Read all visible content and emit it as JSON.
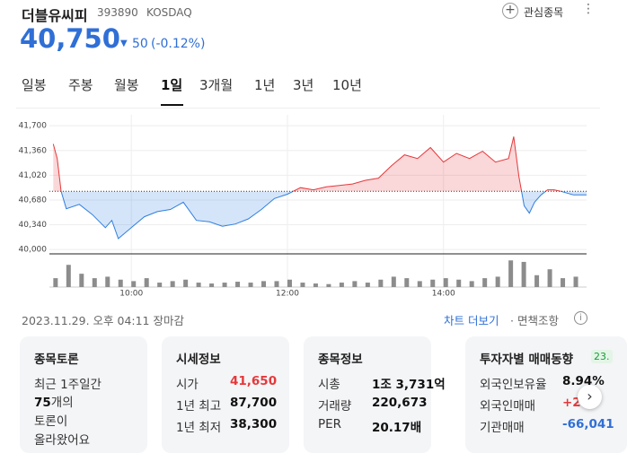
{
  "header": {
    "name": "더블유씨피",
    "code": "393890",
    "market": "KOSDAQ",
    "watch": "관심종목",
    "price": "40,750",
    "change": "50",
    "change_pct": "(-0.12%)"
  },
  "tabs": [
    "일봉",
    "주봉",
    "월봉",
    "1일",
    "3개월",
    "1년",
    "3년",
    "10년"
  ],
  "chart_data": {
    "type": "line",
    "x": [
      540,
      543,
      546,
      550,
      560,
      570,
      580,
      585,
      590,
      600,
      610,
      620,
      630,
      640,
      650,
      660,
      670,
      680,
      690,
      700,
      710,
      720,
      730,
      740,
      750,
      760,
      770,
      780,
      790,
      800,
      810,
      820,
      830,
      840,
      850,
      860,
      870,
      880,
      890,
      894,
      898,
      902,
      906,
      910,
      915,
      920,
      925,
      930,
      940,
      950
    ],
    "series": [
      {
        "values": [
          41450,
          41250,
          40800,
          40560,
          40620,
          40480,
          40300,
          40400,
          40150,
          40300,
          40450,
          40520,
          40550,
          40650,
          40400,
          40380,
          40320,
          40350,
          40420,
          40550,
          40700,
          40760,
          40850,
          40820,
          40860,
          40880,
          40900,
          40950,
          40980,
          41150,
          41300,
          41250,
          41400,
          41200,
          41320,
          41250,
          41350,
          41200,
          41250,
          41550,
          41000,
          40600,
          40500,
          40650,
          40750,
          40820,
          40820,
          40800,
          40750,
          40750
        ],
        "up_color": "#e5383b",
        "down_color": "#2f7fe0"
      }
    ],
    "reference": 40800,
    "xlim": [
      537,
      950
    ],
    "ylim": [
      39940,
      41850
    ],
    "xticks": [
      {
        "value": 600,
        "label": "10:00"
      },
      {
        "value": 720,
        "label": "12:00"
      },
      {
        "value": 840,
        "label": "14:00"
      }
    ],
    "yticks": [
      {
        "value": 41700,
        "label": "41,700"
      },
      {
        "value": 41360,
        "label": "41,360"
      },
      {
        "value": 41020,
        "label": "41,020"
      },
      {
        "value": 40680,
        "label": "40,680"
      },
      {
        "value": 40340,
        "label": "40,340"
      },
      {
        "value": 40000,
        "label": "40,000"
      }
    ],
    "grid": true,
    "volume": {
      "x": [
        540,
        550,
        560,
        570,
        580,
        590,
        600,
        610,
        620,
        630,
        640,
        650,
        660,
        670,
        680,
        690,
        700,
        710,
        720,
        730,
        740,
        750,
        760,
        770,
        780,
        790,
        800,
        810,
        820,
        830,
        840,
        850,
        860,
        870,
        880,
        890,
        900,
        910,
        920,
        930,
        940
      ],
      "values": [
        30,
        75,
        45,
        30,
        35,
        25,
        20,
        30,
        15,
        20,
        25,
        15,
        12,
        15,
        18,
        15,
        20,
        20,
        25,
        15,
        12,
        10,
        15,
        20,
        15,
        25,
        35,
        30,
        20,
        25,
        30,
        25,
        20,
        30,
        35,
        90,
        85,
        40,
        60,
        30,
        35
      ],
      "ylim": [
        0,
        100
      ],
      "color": "#8c8c8c"
    }
  },
  "footer": {
    "date": "2023.11.29. 오후 04:11 장마감",
    "more": "차트 더보기",
    "disclaimer": "면책조항"
  },
  "cards": {
    "discussion": {
      "title": "종목토론",
      "line1": "최근 1주일간",
      "count": "75",
      "count_unit": "개의",
      "line3": "토론이",
      "line4": "올라왔어요"
    },
    "price_info": {
      "title": "시세정보",
      "rows": [
        [
          "시가",
          "41,650"
        ],
        [
          "1년 최고",
          "87,700"
        ],
        [
          "1년 최저",
          "38,300"
        ]
      ]
    },
    "stock_info": {
      "title": "종목정보",
      "rows": [
        [
          "시총",
          "1조 3,731억"
        ],
        [
          "거래량",
          "220,673"
        ],
        [
          "PER",
          "20.17배"
        ]
      ]
    },
    "investor": {
      "title": "투자자별 매매동향",
      "badge": "23.",
      "rows": [
        [
          "외국인보유율",
          "8.94%"
        ],
        [
          "외국인매매",
          "+2"
        ],
        [
          "기관매매",
          "-66,041"
        ]
      ]
    }
  }
}
